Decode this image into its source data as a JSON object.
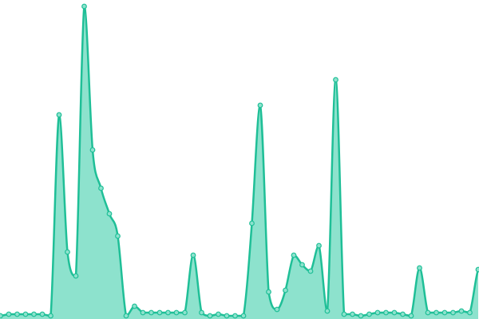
{
  "chart_data": {
    "type": "area",
    "values": [
      1,
      1.5,
      1.5,
      1.5,
      1.5,
      1.5,
      1,
      64,
      21,
      13.5,
      98,
      53,
      41,
      33,
      26,
      1,
      4,
      2,
      2,
      2,
      2,
      2,
      2,
      20,
      2,
      1,
      1.5,
      1,
      1,
      1,
      30,
      67,
      8.5,
      3,
      9,
      20,
      17,
      15,
      23,
      2.5,
      75,
      1.5,
      1.5,
      1,
      1.5,
      2,
      2,
      2,
      1.5,
      1,
      16,
      2,
      2,
      2,
      2,
      2.5,
      2,
      15.5
    ],
    "color": "#1fbf97",
    "fill_color": "#8de2cd",
    "ylim": [
      0,
      100
    ]
  }
}
